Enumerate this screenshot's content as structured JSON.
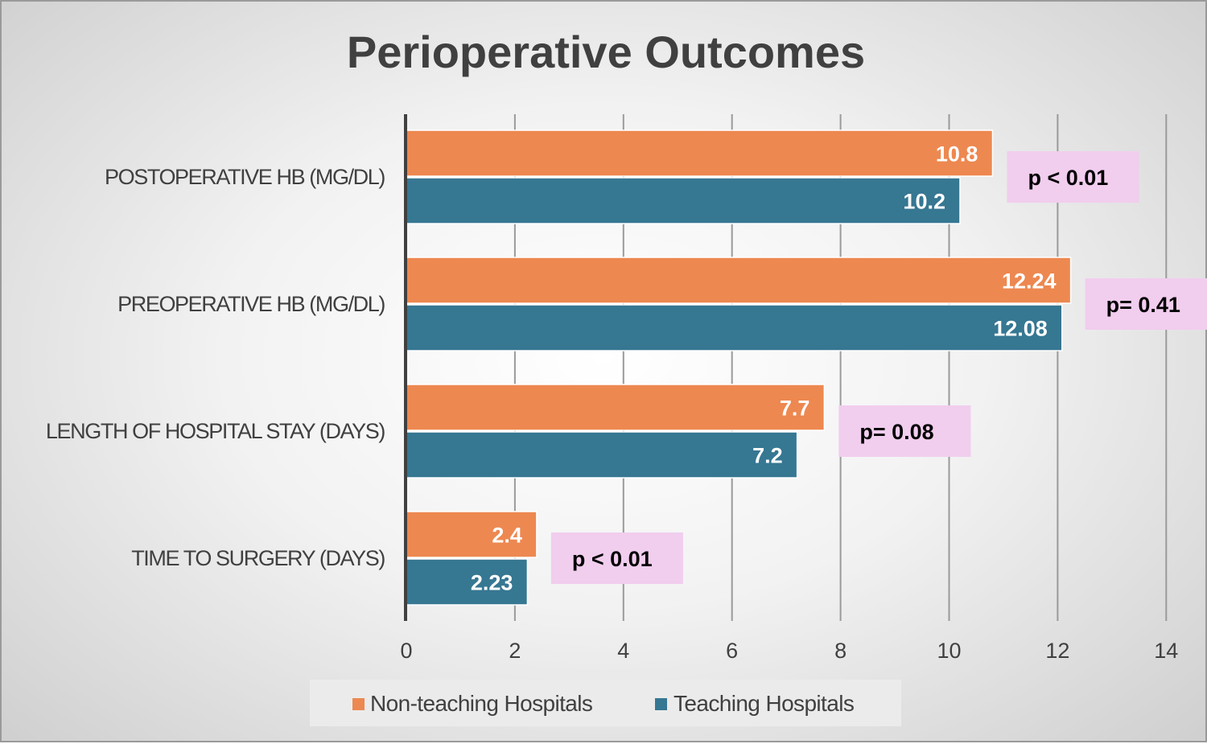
{
  "chart_data": {
    "type": "bar",
    "orientation": "horizontal",
    "title": "Perioperative Outcomes",
    "categories": [
      "POSTOPERATIVE HB (MG/DL)",
      "PREOPERATIVE HB (MG/DL)",
      "LENGTH OF HOSPITAL STAY (DAYS)",
      "TIME TO SURGERY (DAYS)"
    ],
    "series": [
      {
        "name": "Non-teaching Hospitals",
        "color": "#ED8850",
        "values": [
          10.8,
          12.24,
          7.7,
          2.4
        ],
        "labels": [
          "10.8",
          "12.24",
          "7.7",
          "2.4"
        ]
      },
      {
        "name": "Teaching Hospitals",
        "color": "#367792",
        "values": [
          10.2,
          12.08,
          7.2,
          2.23
        ],
        "labels": [
          "10.2",
          "12.08",
          "7.2",
          "2.23"
        ]
      }
    ],
    "annotations": [
      "p < 0.01",
      "p= 0.41",
      "p= 0.08",
      "p < 0.01"
    ],
    "annotation_color": "#F1CDEE",
    "xlim": [
      0,
      14
    ],
    "xticks": [
      0,
      2,
      4,
      6,
      8,
      10,
      12,
      14
    ],
    "xtick_labels": [
      "0",
      "2",
      "4",
      "6",
      "8",
      "10",
      "12",
      "14"
    ],
    "grid": true,
    "legend_position": "bottom"
  }
}
